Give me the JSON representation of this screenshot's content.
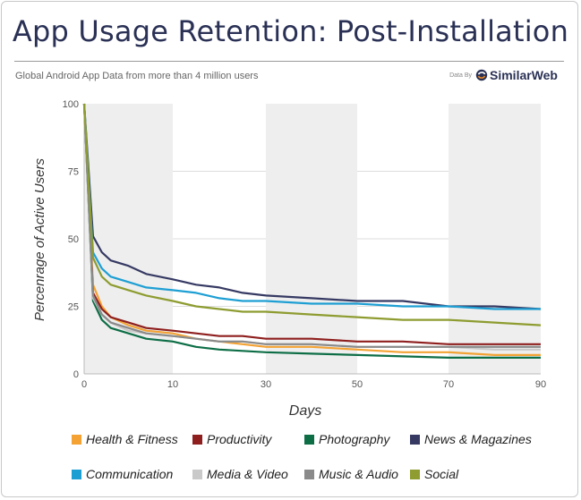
{
  "header": {
    "title": "App Usage Retention: Post-Installation",
    "subtitle": "Global Android App Data from more than 4 million users",
    "brand_prefix": "Data By",
    "brand_name": "SimilarWeb"
  },
  "colors": {
    "Health & Fitness": "#f3a233",
    "Productivity": "#8e1f1e",
    "Photography": "#0d6e46",
    "News & Magazines": "#363a63",
    "Communication": "#1e9fd3",
    "Media & Video": "#c9c9c9",
    "Music & Audio": "#8a8a8a",
    "Social": "#8e9c30"
  },
  "chart_data": {
    "type": "line",
    "xlabel": "Days",
    "ylabel": "Percenrage of Active Users",
    "xlim": [
      0,
      90
    ],
    "ylim": [
      0,
      100
    ],
    "x_ticks": [
      0,
      10,
      30,
      50,
      70,
      90
    ],
    "y_ticks": [
      0,
      25,
      50,
      75,
      100
    ],
    "grid": "alternating vertical bands",
    "legend": "bottom",
    "x": [
      0,
      1,
      2,
      3,
      5,
      7,
      10,
      15,
      20,
      25,
      30,
      40,
      50,
      60,
      70,
      80,
      90
    ],
    "series": [
      {
        "name": "Health & Fitness",
        "values": [
          100,
          33,
          25,
          21,
          18,
          16,
          15,
          13,
          12,
          11,
          10,
          10,
          9,
          8,
          8,
          7,
          7
        ]
      },
      {
        "name": "Productivity",
        "values": [
          100,
          30,
          24,
          21,
          19,
          17,
          16,
          15,
          14,
          14,
          13,
          13,
          12,
          12,
          11,
          11,
          11
        ]
      },
      {
        "name": "Photography",
        "values": [
          100,
          27,
          20,
          17,
          15,
          13,
          12,
          10,
          9,
          8.5,
          8,
          7.5,
          7,
          6.5,
          6,
          6,
          6
        ]
      },
      {
        "name": "News & Magazines",
        "values": [
          100,
          51,
          45,
          42,
          40,
          37,
          35,
          33,
          32,
          30,
          29,
          28,
          27,
          27,
          25,
          25,
          24
        ]
      },
      {
        "name": "Communication",
        "values": [
          100,
          45,
          39,
          36,
          34,
          32,
          31,
          30,
          28,
          27,
          27,
          26,
          26,
          25,
          25,
          24,
          24
        ]
      },
      {
        "name": "Media & Video",
        "values": [
          100,
          28,
          22,
          19,
          16,
          15,
          14,
          13,
          12,
          12,
          11,
          11,
          10,
          10,
          10,
          9,
          9
        ]
      },
      {
        "name": "Music & Audio",
        "values": [
          100,
          29,
          22,
          19,
          17,
          15,
          14,
          13,
          12,
          12,
          11,
          11,
          10,
          10,
          10,
          10,
          10
        ]
      },
      {
        "name": "Social",
        "values": [
          100,
          43,
          36,
          33,
          31,
          29,
          27,
          25,
          24,
          23,
          23,
          22,
          21,
          20,
          20,
          19,
          18
        ]
      }
    ]
  }
}
